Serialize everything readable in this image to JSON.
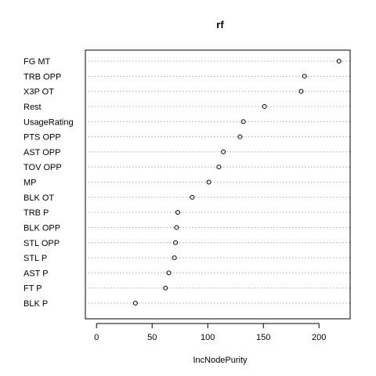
{
  "chart_data": {
    "type": "scatter",
    "title": "rf",
    "xlabel": "IncNodePurity",
    "ylabel": "",
    "xlim": [
      -10,
      228
    ],
    "xticks": [
      0,
      50,
      100,
      150,
      200
    ],
    "grid": "dotted horizontal lines per variable",
    "legend": "none",
    "categories": [
      "FG MT",
      "TRB OPP",
      "X3P OT",
      "Rest",
      "UsageRating",
      "PTS OPP",
      "AST OPP",
      "TOV OPP",
      "MP",
      "BLK OT",
      "TRB P",
      "BLK OPP",
      "STL OPP",
      "STL P",
      "AST P",
      "FT P",
      "BLK P"
    ],
    "values": [
      218,
      187,
      184,
      151,
      132,
      129,
      114,
      110,
      101,
      86,
      73,
      72,
      71,
      70,
      65,
      62,
      35
    ],
    "colors": {
      "point": "#000000",
      "grid": "#aaaaaa",
      "frame": "#000000"
    }
  }
}
